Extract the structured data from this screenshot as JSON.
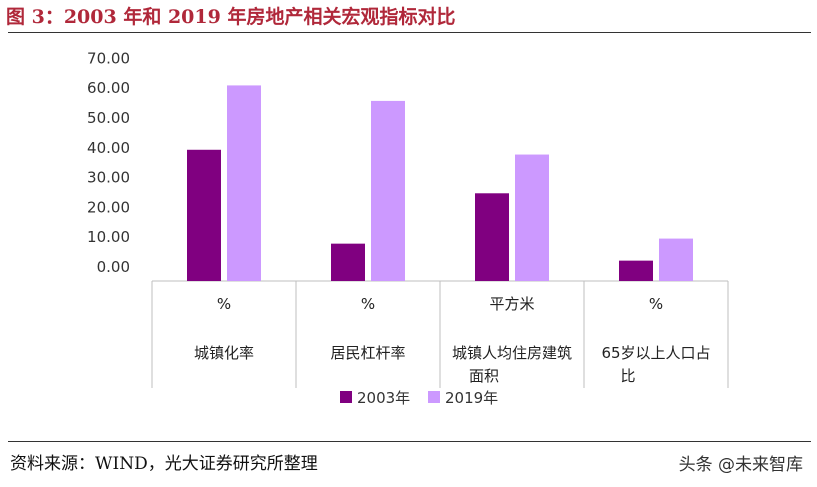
{
  "title": "图 3：2003 年和 2019 年房地产相关宏观指标对比",
  "source": "资料来源：WIND，光大证券研究所整理",
  "watermark": "头条 @未来智库",
  "colors": {
    "title": "#b0283a",
    "series_2003": "#800080",
    "series_2019": "#cc99ff",
    "axis": "#bfbfbf"
  },
  "chart_data": {
    "type": "bar",
    "categories": [
      {
        "unit": "%",
        "name": "城镇化率"
      },
      {
        "unit": "%",
        "name": "居民杠杆率"
      },
      {
        "unit": "平方米",
        "name": "城镇人均住房建筑面积"
      },
      {
        "unit": "%",
        "name": "65岁以上人口占比"
      }
    ],
    "series": [
      {
        "name": "2003年",
        "values": [
          39.0,
          7.5,
          24.4,
          1.8
        ]
      },
      {
        "name": "2019年",
        "values": [
          60.6,
          55.4,
          37.4,
          9.2
        ]
      }
    ],
    "yticks": [
      "0.00",
      "10.00",
      "20.00",
      "30.00",
      "40.00",
      "50.00",
      "60.00",
      "70.00"
    ],
    "ylim": [
      0,
      70
    ],
    "legend_position": "bottom",
    "grid": false
  }
}
